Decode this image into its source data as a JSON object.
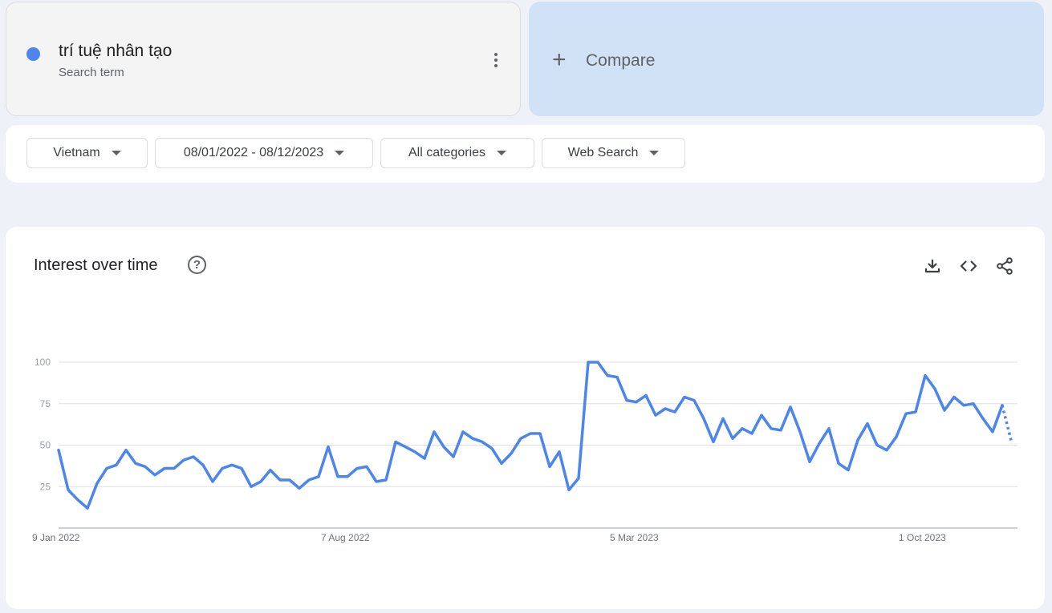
{
  "term": {
    "name": "trí tuệ nhân tạo",
    "type": "Search term",
    "color": "#4c86ed"
  },
  "compare": {
    "label": "Compare"
  },
  "filters": {
    "region": "Vietnam",
    "date_range": "08/01/2022 - 08/12/2023",
    "category": "All categories",
    "search_type": "Web Search"
  },
  "panel": {
    "title": "Interest over time"
  },
  "icons": {
    "download": "download-icon",
    "embed": "embed-code-icon",
    "share": "share-icon",
    "help": "help-icon",
    "more": "more-vert-icon",
    "add": "plus-icon"
  },
  "chart_data": {
    "type": "line",
    "title": "Interest over time",
    "xlabel": "",
    "ylabel": "",
    "ylim": [
      0,
      100
    ],
    "yticks": [
      25,
      50,
      75,
      100
    ],
    "xtick_labels": [
      "9 Jan 2022",
      "7 Aug 2022",
      "5 Mar 2023",
      "1 Oct 2023"
    ],
    "xtick_index": [
      0,
      30,
      60,
      90
    ],
    "grid": true,
    "legend": "none",
    "partial_from_index": 98,
    "series": [
      {
        "color": "#4c86ed",
        "values": [
          47,
          23,
          17,
          12,
          27,
          36,
          38,
          47,
          39,
          37,
          32,
          36,
          36,
          41,
          43,
          38,
          28,
          36,
          38,
          36,
          25,
          28,
          35,
          29,
          29,
          24,
          29,
          31,
          49,
          31,
          31,
          36,
          37,
          28,
          29,
          52,
          49,
          46,
          42,
          58,
          49,
          43,
          58,
          54,
          52,
          48,
          39,
          45,
          54,
          57,
          57,
          37,
          46,
          23,
          30,
          100,
          100,
          92,
          91,
          77,
          76,
          80,
          68,
          72,
          70,
          79,
          77,
          66,
          52,
          66,
          54,
          60,
          57,
          68,
          60,
          59,
          73,
          58,
          40,
          51,
          60,
          39,
          35,
          53,
          63,
          50,
          47,
          55,
          69,
          70,
          92,
          84,
          71,
          79,
          74,
          75,
          66,
          58,
          74,
          51
        ]
      }
    ]
  }
}
